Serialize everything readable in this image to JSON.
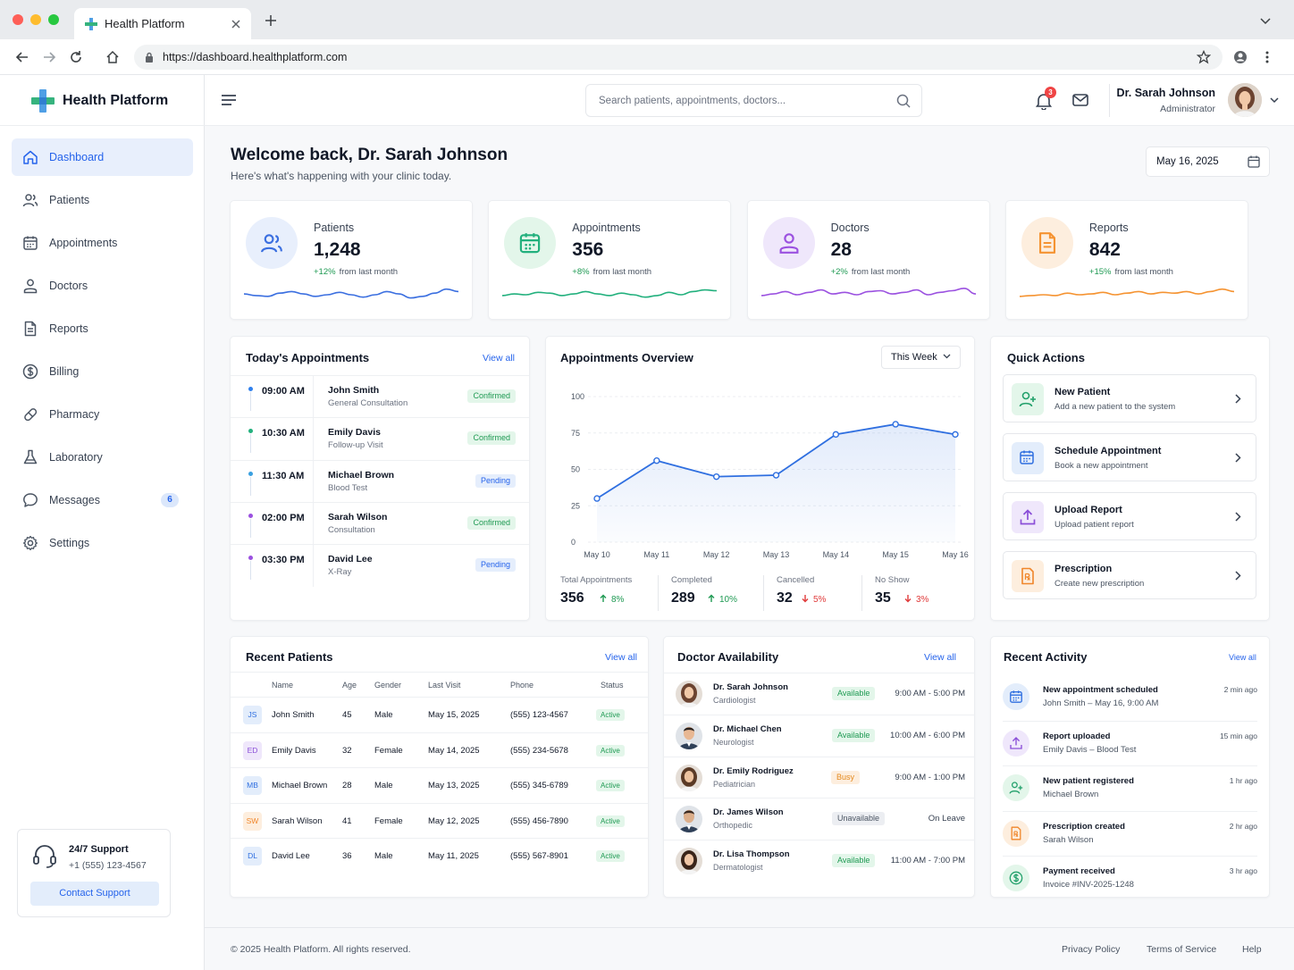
{
  "browser": {
    "tab_title": "Health Platform",
    "url": "https://dashboard.healthplatform.com"
  },
  "brand": {
    "name": "Health Platform"
  },
  "sidebar": {
    "items": [
      {
        "label": "Dashboard",
        "icon": "home-icon",
        "active": true
      },
      {
        "label": "Patients",
        "icon": "users-icon"
      },
      {
        "label": "Appointments",
        "icon": "calendar-icon"
      },
      {
        "label": "Doctors",
        "icon": "user-icon"
      },
      {
        "label": "Reports",
        "icon": "file-icon"
      },
      {
        "label": "Billing",
        "icon": "dollar-icon"
      },
      {
        "label": "Pharmacy",
        "icon": "pill-icon"
      },
      {
        "label": "Laboratory",
        "icon": "flask-icon"
      },
      {
        "label": "Messages",
        "icon": "message-icon",
        "badge": "6"
      },
      {
        "label": "Settings",
        "icon": "gear-icon"
      }
    ],
    "support": {
      "title": "24/7 Support",
      "phone": "+1 (555) 123-4567",
      "button": "Contact Support"
    }
  },
  "header": {
    "search_placeholder": "Search patients, appointments, doctors...",
    "notification_count": "3",
    "user_name": "Dr. Sarah Johnson",
    "user_role": "Administrator"
  },
  "welcome": {
    "title": "Welcome back, Dr. Sarah Johnson",
    "subtitle": "Here's what's happening with your clinic today.",
    "date": "May 16, 2025"
  },
  "stats": [
    {
      "label": "Patients",
      "value": "1,248",
      "change": "+12%",
      "change_text": "from last month",
      "color": "#3b6fe0"
    },
    {
      "label": "Appointments",
      "value": "356",
      "change": "+8%",
      "change_text": "from last month",
      "color": "#22b07d"
    },
    {
      "label": "Doctors",
      "value": "28",
      "change": "+2%",
      "change_text": "from last month",
      "color": "#9b51e0"
    },
    {
      "label": "Reports",
      "value": "842",
      "change": "+15%",
      "change_text": "from last month",
      "color": "#f59331"
    }
  ],
  "today_appointments": {
    "title": "Today's Appointments",
    "view_all": "View all",
    "rows": [
      {
        "time": "09:00 AM",
        "name": "John Smith",
        "type": "General Consultation",
        "status": "Confirmed",
        "dot": "#2f80ed"
      },
      {
        "time": "10:30 AM",
        "name": "Emily Davis",
        "type": "Follow-up Visit",
        "status": "Confirmed",
        "dot": "#22b07d"
      },
      {
        "time": "11:30 AM",
        "name": "Michael Brown",
        "type": "Blood Test",
        "status": "Pending",
        "dot": "#3aa0e0"
      },
      {
        "time": "02:00 PM",
        "name": "Sarah Wilson",
        "type": "Consultation",
        "status": "Confirmed",
        "dot": "#9b51e0"
      },
      {
        "time": "03:30 PM",
        "name": "David Lee",
        "type": "X-Ray",
        "status": "Pending",
        "dot": "#9b51e0"
      }
    ]
  },
  "overview": {
    "title": "Appointments Overview",
    "range": "This Week",
    "metrics": [
      {
        "label": "Total Appointments",
        "value": "356",
        "change": "8%",
        "dir": "up"
      },
      {
        "label": "Completed",
        "value": "289",
        "change": "10%",
        "dir": "up"
      },
      {
        "label": "Cancelled",
        "value": "32",
        "change": "5%",
        "dir": "down"
      },
      {
        "label": "No Show",
        "value": "35",
        "change": "3%",
        "dir": "down"
      }
    ]
  },
  "chart_data": {
    "type": "area",
    "x": [
      "May 10",
      "May 11",
      "May 12",
      "May 13",
      "May 14",
      "May 15",
      "May 16"
    ],
    "values": [
      30,
      56,
      45,
      46,
      74,
      81,
      74
    ],
    "ylim": [
      0,
      100
    ],
    "yticks": [
      "100",
      "75",
      "50",
      "25",
      "0"
    ],
    "color": "#2f6fe0",
    "grid": true
  },
  "quick_actions": {
    "title": "Quick Actions",
    "items": [
      {
        "title": "New Patient",
        "subtitle": "Add a new patient to the system",
        "icon": "user-plus-icon",
        "bg": "#e3f6ea",
        "fg": "#22a06b"
      },
      {
        "title": "Schedule Appointment",
        "subtitle": "Book a new appointment",
        "icon": "calendar-icon",
        "bg": "#e3edfb",
        "fg": "#2f6fe0"
      },
      {
        "title": "Upload Report",
        "subtitle": "Upload patient report",
        "icon": "upload-icon",
        "bg": "#efe7fb",
        "fg": "#8b4fd8"
      },
      {
        "title": "Prescription",
        "subtitle": "Create new prescription",
        "icon": "prescription-icon",
        "bg": "#fdeede",
        "fg": "#f0862a"
      }
    ]
  },
  "recent_patients": {
    "title": "Recent Patients",
    "view_all": "View all",
    "columns": [
      "Name",
      "Age",
      "Gender",
      "Last Visit",
      "Phone",
      "Status"
    ],
    "rows": [
      {
        "initials": "JS",
        "name": "John Smith",
        "age": "45",
        "gender": "Male",
        "last_visit": "May 15, 2025",
        "phone": "(555) 123-4567",
        "status": "Active",
        "bg": "#e3edfb",
        "fg": "#2f6fe0"
      },
      {
        "initials": "ED",
        "name": "Emily Davis",
        "age": "32",
        "gender": "Female",
        "last_visit": "May 14, 2025",
        "phone": "(555) 234-5678",
        "status": "Active",
        "bg": "#efe7fb",
        "fg": "#8b4fd8"
      },
      {
        "initials": "MB",
        "name": "Michael Brown",
        "age": "28",
        "gender": "Male",
        "last_visit": "May 13, 2025",
        "phone": "(555) 345-6789",
        "status": "Active",
        "bg": "#e3edfb",
        "fg": "#2f6fe0"
      },
      {
        "initials": "SW",
        "name": "Sarah Wilson",
        "age": "41",
        "gender": "Female",
        "last_visit": "May 12, 2025",
        "phone": "(555) 456-7890",
        "status": "Active",
        "bg": "#fdeede",
        "fg": "#f0862a"
      },
      {
        "initials": "DL",
        "name": "David Lee",
        "age": "36",
        "gender": "Male",
        "last_visit": "May 11, 2025",
        "phone": "(555) 567-8901",
        "status": "Active",
        "bg": "#e3edfb",
        "fg": "#2f6fe0"
      }
    ]
  },
  "doctor_availability": {
    "title": "Doctor Availability",
    "view_all": "View all",
    "rows": [
      {
        "name": "Dr. Sarah Johnson",
        "specialty": "Cardiologist",
        "status": "Available",
        "hours": "9:00 AM - 5:00 PM",
        "kind": "avail",
        "gender": "f"
      },
      {
        "name": "Dr. Michael Chen",
        "specialty": "Neurologist",
        "status": "Available",
        "hours": "10:00 AM - 6:00 PM",
        "kind": "avail",
        "gender": "m"
      },
      {
        "name": "Dr. Emily Rodriguez",
        "specialty": "Pediatrician",
        "status": "Busy",
        "hours": "9:00 AM - 1:00 PM",
        "kind": "busy",
        "gender": "f"
      },
      {
        "name": "Dr. James Wilson",
        "specialty": "Orthopedic",
        "status": "Unavailable",
        "hours": "On Leave",
        "kind": "unav",
        "gender": "m"
      },
      {
        "name": "Dr. Lisa Thompson",
        "specialty": "Dermatologist",
        "status": "Available",
        "hours": "11:00 AM - 7:00 PM",
        "kind": "avail",
        "gender": "f"
      }
    ]
  },
  "recent_activity": {
    "title": "Recent Activity",
    "view_all": "View all",
    "rows": [
      {
        "title": "New appointment scheduled",
        "subtitle": "John Smith – May 16, 9:00 AM",
        "time": "2 min ago",
        "icon": "calendar-icon",
        "bg": "#e3edfb",
        "fg": "#2f6fe0"
      },
      {
        "title": "Report uploaded",
        "subtitle": "Emily Davis – Blood Test",
        "time": "15 min ago",
        "icon": "upload-icon",
        "bg": "#efe7fb",
        "fg": "#8b4fd8"
      },
      {
        "title": "New patient registered",
        "subtitle": "Michael Brown",
        "time": "1 hr ago",
        "icon": "user-plus-icon",
        "bg": "#e3f6ea",
        "fg": "#22a06b"
      },
      {
        "title": "Prescription created",
        "subtitle": "Sarah Wilson",
        "time": "2 hr ago",
        "icon": "prescription-icon",
        "bg": "#fdeede",
        "fg": "#f0862a"
      },
      {
        "title": "Payment received",
        "subtitle": "Invoice #INV-2025-1248",
        "time": "3 hr ago",
        "icon": "dollar-icon",
        "bg": "#e3f6ea",
        "fg": "#22a06b"
      }
    ]
  },
  "footer": {
    "copyright": "© 2025 Health Platform. All rights reserved.",
    "links": [
      "Privacy Policy",
      "Terms of Service",
      "Help"
    ]
  }
}
